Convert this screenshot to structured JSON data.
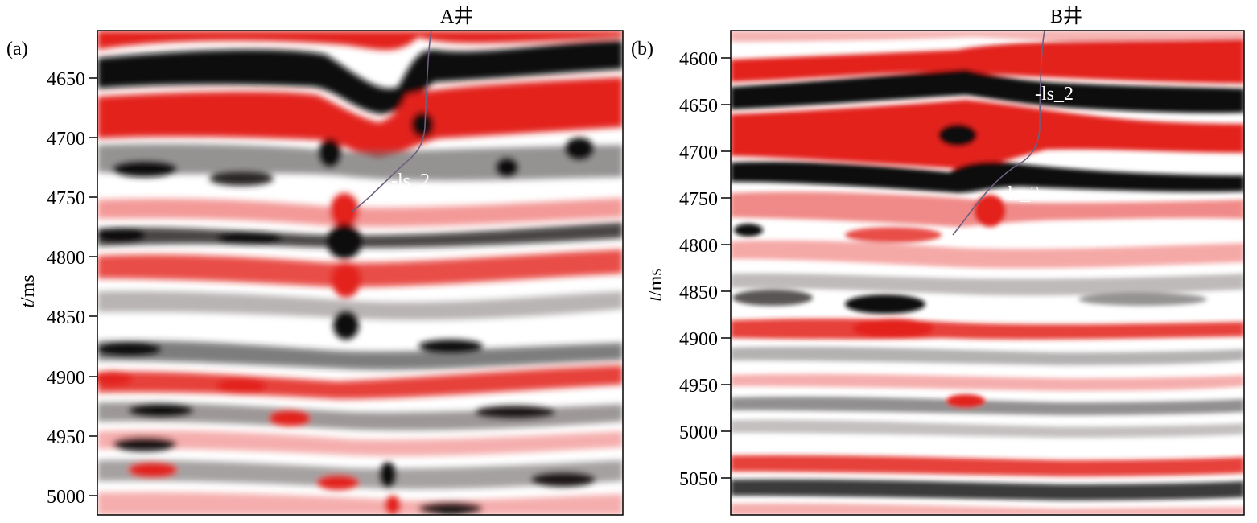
{
  "panels": [
    {
      "id": "a",
      "label": "(a)",
      "axis_title": "t/ms",
      "ticks": [
        "4650",
        "4700",
        "4750",
        "4800",
        "4850",
        "4900",
        "4950",
        "5000"
      ],
      "well_label": "A井",
      "horizon_label": "-ls_2"
    },
    {
      "id": "b",
      "label": "(b)",
      "axis_title": "t/ms",
      "ticks": [
        "4600",
        "4650",
        "4700",
        "4750",
        "4800",
        "4850",
        "4900",
        "4950",
        "5000",
        "5050"
      ],
      "well_label": "B井",
      "horizon_labels": [
        "-ls_2",
        "ls_3"
      ]
    }
  ],
  "colors": {
    "red": "#e3201b",
    "black": "#0d0a0a",
    "white": "#ffffff"
  }
}
